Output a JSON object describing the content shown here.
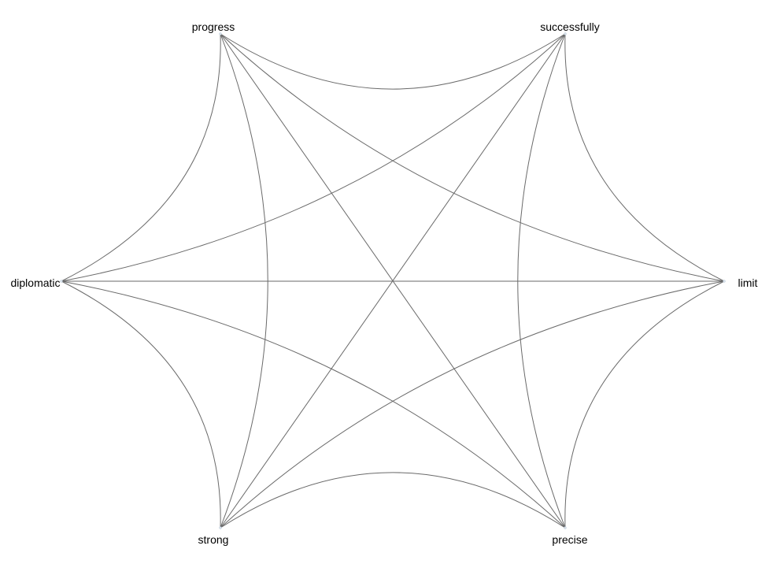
{
  "diagram": {
    "type": "network-graph",
    "edge_color": "#6a6a6a",
    "label_color": "#000000",
    "nodes": [
      {
        "id": "progress",
        "label": "progress"
      },
      {
        "id": "successfully",
        "label": "successfully"
      },
      {
        "id": "diplomatic",
        "label": "diplomatic"
      },
      {
        "id": "limit",
        "label": "limit"
      },
      {
        "id": "strong",
        "label": "strong"
      },
      {
        "id": "precise",
        "label": "precise"
      }
    ],
    "edges": [
      {
        "from": "progress",
        "to": "successfully"
      },
      {
        "from": "progress",
        "to": "diplomatic"
      },
      {
        "from": "progress",
        "to": "limit"
      },
      {
        "from": "progress",
        "to": "strong"
      },
      {
        "from": "progress",
        "to": "precise"
      },
      {
        "from": "successfully",
        "to": "diplomatic"
      },
      {
        "from": "successfully",
        "to": "limit"
      },
      {
        "from": "successfully",
        "to": "strong"
      },
      {
        "from": "successfully",
        "to": "precise"
      },
      {
        "from": "diplomatic",
        "to": "limit"
      },
      {
        "from": "diplomatic",
        "to": "strong"
      },
      {
        "from": "diplomatic",
        "to": "precise"
      },
      {
        "from": "limit",
        "to": "strong"
      },
      {
        "from": "limit",
        "to": "precise"
      },
      {
        "from": "strong",
        "to": "precise"
      }
    ]
  }
}
